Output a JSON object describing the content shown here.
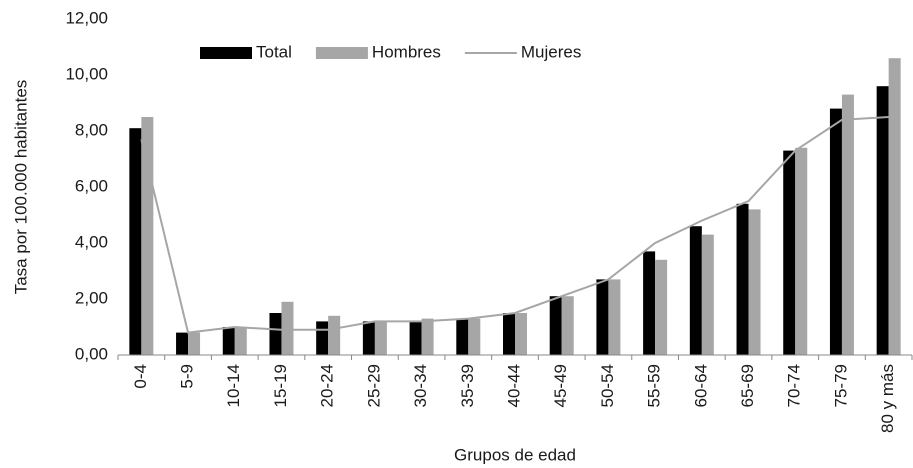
{
  "chart_data": {
    "type": "bar",
    "x_label": "Grupos de edad",
    "y_label": "Tasa por 100.000 habitantes",
    "categories": [
      "0-4",
      "5-9",
      "10-14",
      "15-19",
      "20-24",
      "25-29",
      "30-34",
      "35-39",
      "40-44",
      "45-49",
      "50-54",
      "55-59",
      "60-64",
      "65-69",
      "70-74",
      "75-79",
      "80 y más"
    ],
    "series": [
      {
        "name": "Total",
        "color": "#000000",
        "type": "bar",
        "values": [
          8.1,
          0.8,
          1.0,
          1.5,
          1.2,
          1.2,
          1.2,
          1.3,
          1.5,
          2.1,
          2.7,
          3.7,
          4.6,
          5.4,
          7.3,
          8.8,
          9.6
        ]
      },
      {
        "name": "Hombres",
        "color": "#a6a6a6",
        "type": "bar",
        "values": [
          8.5,
          0.8,
          1.0,
          1.9,
          1.4,
          1.2,
          1.3,
          1.3,
          1.5,
          2.1,
          2.7,
          3.4,
          4.3,
          5.2,
          7.4,
          9.3,
          10.6
        ]
      },
      {
        "name": "Mujeres",
        "color": "#a6a6a6",
        "type": "line",
        "values": [
          7.7,
          0.8,
          1.0,
          0.9,
          0.9,
          1.2,
          1.2,
          1.3,
          1.5,
          2.1,
          2.7,
          4.0,
          4.8,
          5.5,
          7.3,
          8.4,
          8.5
        ]
      }
    ],
    "ylim": [
      0,
      12
    ],
    "yticks": [
      {
        "value": 0,
        "label": "0,00"
      },
      {
        "value": 2,
        "label": "2,00"
      },
      {
        "value": 4,
        "label": "4,00"
      },
      {
        "value": 6,
        "label": "6,00"
      },
      {
        "value": 8,
        "label": "8,00"
      },
      {
        "value": 10,
        "label": "10,00"
      },
      {
        "value": 12,
        "label": "12,00"
      }
    ],
    "legend": "top"
  }
}
